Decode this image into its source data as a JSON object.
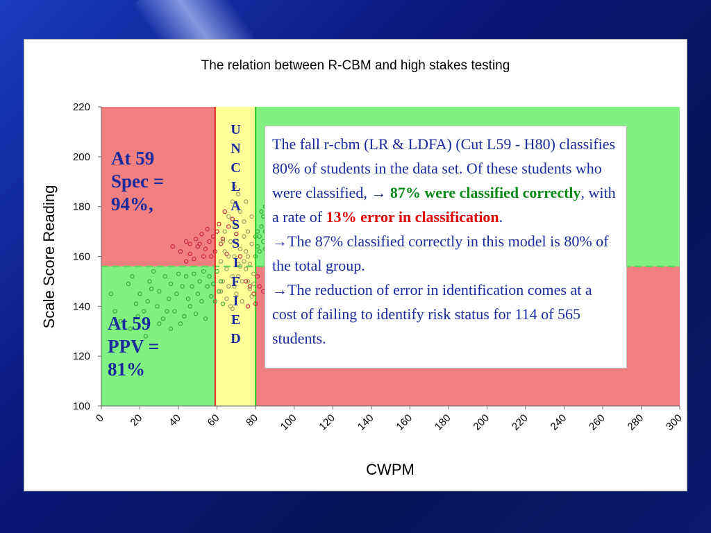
{
  "chart_data": {
    "type": "scatter",
    "title": "The relation between R-CBM and high stakes testing",
    "xlabel": "CWPM",
    "ylabel": "Scale Score Reading",
    "xlim": [
      0,
      300
    ],
    "ylim": [
      100,
      220
    ],
    "xticks": [
      0,
      20,
      40,
      60,
      80,
      100,
      120,
      140,
      160,
      180,
      200,
      220,
      240,
      260,
      280,
      300
    ],
    "yticks": [
      100,
      120,
      140,
      160,
      180,
      200,
      220
    ],
    "grid": false,
    "cut_low_x": 59,
    "cut_high_x": 80,
    "cut_y": 156,
    "regions": [
      {
        "name": "upper-left",
        "x": [
          0,
          59
        ],
        "y": [
          156,
          220
        ],
        "color": "#f08080"
      },
      {
        "name": "lower-left",
        "x": [
          0,
          59
        ],
        "y": [
          100,
          156
        ],
        "color": "#80f080"
      },
      {
        "name": "unclassified",
        "x": [
          59,
          80
        ],
        "y": [
          100,
          220
        ],
        "color": "#ffff99"
      },
      {
        "name": "upper-right",
        "x": [
          80,
          300
        ],
        "y": [
          156,
          220
        ],
        "color": "#80f080"
      },
      {
        "name": "lower-right",
        "x": [
          80,
          300
        ],
        "y": [
          100,
          156
        ],
        "color": "#f08080"
      }
    ],
    "series": [
      {
        "color": "#cc2244",
        "points": [
          [
            37,
            164
          ],
          [
            41,
            162
          ],
          [
            44,
            166
          ],
          [
            46,
            161
          ],
          [
            49,
            167
          ],
          [
            51,
            165
          ],
          [
            52,
            169
          ],
          [
            54,
            163
          ],
          [
            55,
            171
          ],
          [
            56,
            166
          ],
          [
            58,
            168
          ],
          [
            59,
            162
          ],
          [
            60,
            170
          ],
          [
            61,
            173
          ],
          [
            62,
            165
          ],
          [
            63,
            167
          ],
          [
            64,
            178
          ],
          [
            65,
            161
          ],
          [
            66,
            172
          ],
          [
            68,
            175
          ],
          [
            70,
            169
          ],
          [
            72,
            160
          ],
          [
            44,
            158
          ],
          [
            48,
            159
          ],
          [
            57,
            160
          ],
          [
            50,
            164
          ],
          [
            53,
            160
          ],
          [
            46,
            165
          ],
          [
            75,
            150
          ],
          [
            77,
            148
          ],
          [
            79,
            145
          ],
          [
            81,
            152
          ],
          [
            82,
            148
          ],
          [
            84,
            146
          ],
          [
            76,
            140
          ],
          [
            80,
            141
          ]
        ]
      },
      {
        "color": "#33aa33",
        "points": [
          [
            5,
            145
          ],
          [
            7,
            138
          ],
          [
            10,
            134
          ],
          [
            14,
            149
          ],
          [
            16,
            152
          ],
          [
            18,
            141
          ],
          [
            20,
            145
          ],
          [
            22,
            138
          ],
          [
            23,
            128
          ],
          [
            25,
            150
          ],
          [
            27,
            154
          ],
          [
            29,
            140
          ],
          [
            30,
            146
          ],
          [
            32,
            135
          ],
          [
            33,
            152
          ],
          [
            35,
            143
          ],
          [
            36,
            149
          ],
          [
            38,
            138
          ],
          [
            39,
            145
          ],
          [
            40,
            153
          ],
          [
            41,
            133
          ],
          [
            42,
            148
          ],
          [
            43,
            136
          ],
          [
            44,
            152
          ],
          [
            45,
            143
          ],
          [
            46,
            140
          ],
          [
            47,
            148
          ],
          [
            48,
            153
          ],
          [
            49,
            137
          ],
          [
            50,
            145
          ],
          [
            51,
            150
          ],
          [
            52,
            142
          ],
          [
            53,
            154
          ],
          [
            54,
            135
          ],
          [
            55,
            148
          ],
          [
            56,
            152
          ],
          [
            57,
            144
          ],
          [
            58,
            149
          ],
          [
            59,
            142
          ],
          [
            60,
            154
          ],
          [
            61,
            146
          ],
          [
            62,
            150
          ],
          [
            63,
            141
          ],
          [
            30,
            133
          ],
          [
            36,
            131
          ],
          [
            19,
            136
          ],
          [
            24,
            142
          ],
          [
            26,
            147
          ],
          [
            15,
            131
          ],
          [
            34,
            138
          ],
          [
            80,
            160
          ],
          [
            81,
            164
          ],
          [
            82,
            168
          ],
          [
            83,
            172
          ],
          [
            84,
            176
          ],
          [
            85,
            180
          ],
          [
            86,
            185
          ],
          [
            82,
            162
          ],
          [
            84,
            166
          ],
          [
            85,
            170
          ],
          [
            86,
            158
          ],
          [
            83,
            178
          ],
          [
            81,
            170
          ],
          [
            80,
            168
          ],
          [
            85,
            163
          ],
          [
            86,
            174
          ]
        ]
      },
      {
        "color": "#999966",
        "points": [
          [
            62,
            158
          ],
          [
            63,
            150
          ],
          [
            64,
            162
          ],
          [
            65,
            155
          ],
          [
            66,
            148
          ],
          [
            67,
            166
          ],
          [
            68,
            152
          ],
          [
            69,
            160
          ],
          [
            70,
            145
          ],
          [
            71,
            157
          ],
          [
            72,
            163
          ],
          [
            73,
            150
          ],
          [
            74,
            168
          ],
          [
            75,
            155
          ],
          [
            76,
            160
          ],
          [
            77,
            147
          ],
          [
            78,
            165
          ],
          [
            79,
            153
          ],
          [
            64,
            170
          ],
          [
            66,
            176
          ],
          [
            68,
            182
          ],
          [
            70,
            172
          ],
          [
            72,
            178
          ],
          [
            74,
            174
          ],
          [
            76,
            170
          ],
          [
            78,
            176
          ],
          [
            65,
            143
          ],
          [
            67,
            140
          ],
          [
            69,
            148
          ],
          [
            71,
            152
          ],
          [
            73,
            142
          ],
          [
            75,
            162
          ],
          [
            77,
            157
          ],
          [
            79,
            149
          ],
          [
            66,
            160
          ],
          [
            70,
            166
          ],
          [
            74,
            158
          ],
          [
            62,
            146
          ],
          [
            68,
            139
          ],
          [
            72,
            156
          ],
          [
            76,
            150
          ],
          [
            78,
            144
          ],
          [
            63,
            166
          ],
          [
            71,
            185
          ],
          [
            75,
            182
          ],
          [
            69,
            188
          ]
        ]
      }
    ]
  },
  "annotations": {
    "spec_line1": "At 59",
    "spec_line2": "Spec =",
    "spec_line3": "94%,",
    "ppv_line1": "At 59",
    "ppv_line2": "PPV =",
    "ppv_line3": "81%",
    "unclassified_letters": [
      "U",
      "N",
      "C",
      "L",
      "A",
      "S",
      "S",
      "I",
      "F",
      "I",
      "E",
      "D"
    ]
  },
  "textbox": {
    "p1": "The fall r-cbm (LR & LDFA) (Cut L59 - H80) classifies 80% of students in the data set. Of these students who were classified,",
    "arrow": "→",
    "correct_strong": "87% were classified correctly",
    "correct_rest": ", with a rate of ",
    "error_strong": "13% error in classification",
    "error_end": ".",
    "p2": "The 87% classified correctly in this model is 80% of the total group.",
    "p3": "The reduction of error in identification comes at a cost of failing to identify risk status for 114 of 565 students."
  }
}
